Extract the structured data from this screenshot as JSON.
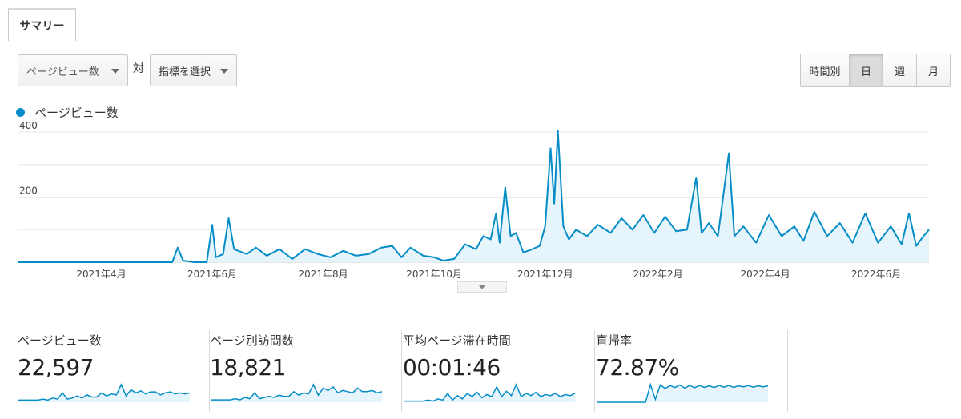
{
  "tabs": [
    {
      "label": "サマリー"
    }
  ],
  "controls": {
    "metric_select": "ページビュー数",
    "vs_label": "対",
    "compare_select": "指標を選択",
    "granularity": [
      {
        "label": "時間別",
        "active": false
      },
      {
        "label": "日",
        "active": true
      },
      {
        "label": "週",
        "active": false
      },
      {
        "label": "月",
        "active": false
      }
    ]
  },
  "legend": {
    "label": "ページビュー数",
    "color": "#058dc7"
  },
  "chart_data": {
    "type": "area",
    "series_name": "ページビュー数",
    "x_start": "2021-02-14",
    "x_end": "2022-06-30",
    "ylim": [
      0,
      420
    ],
    "y_ticks": [
      {
        "value": 400,
        "label": "400"
      },
      {
        "value": 200,
        "label": "200"
      }
    ],
    "x_ticks": [
      {
        "date": "2021-04-01",
        "label": "2021年4月"
      },
      {
        "date": "2021-06-01",
        "label": "2021年6月"
      },
      {
        "date": "2021-08-01",
        "label": "2021年8月"
      },
      {
        "date": "2021-10-01",
        "label": "2021年10月"
      },
      {
        "date": "2021-12-01",
        "label": "2021年12月"
      },
      {
        "date": "2022-02-01",
        "label": "2022年2月"
      },
      {
        "date": "2022-04-01",
        "label": "2022年4月"
      },
      {
        "date": "2022-06-01",
        "label": "2022年6月"
      }
    ],
    "grid": true,
    "color": "#058dc7",
    "fill": "#e6f4fb",
    "points": [
      [
        "2021-02-14",
        0
      ],
      [
        "2021-05-10",
        0
      ],
      [
        "2021-05-13",
        45
      ],
      [
        "2021-05-16",
        5
      ],
      [
        "2021-05-22",
        0
      ],
      [
        "2021-05-29",
        0
      ],
      [
        "2021-06-01",
        115
      ],
      [
        "2021-06-03",
        15
      ],
      [
        "2021-06-07",
        25
      ],
      [
        "2021-06-10",
        135
      ],
      [
        "2021-06-13",
        40
      ],
      [
        "2021-06-20",
        25
      ],
      [
        "2021-06-25",
        45
      ],
      [
        "2021-07-01",
        20
      ],
      [
        "2021-07-08",
        40
      ],
      [
        "2021-07-15",
        10
      ],
      [
        "2021-07-22",
        40
      ],
      [
        "2021-07-29",
        25
      ],
      [
        "2021-08-05",
        15
      ],
      [
        "2021-08-12",
        35
      ],
      [
        "2021-08-19",
        20
      ],
      [
        "2021-08-26",
        25
      ],
      [
        "2021-09-02",
        45
      ],
      [
        "2021-09-08",
        50
      ],
      [
        "2021-09-13",
        15
      ],
      [
        "2021-09-18",
        45
      ],
      [
        "2021-09-25",
        20
      ],
      [
        "2021-10-01",
        15
      ],
      [
        "2021-10-06",
        5
      ],
      [
        "2021-10-12",
        10
      ],
      [
        "2021-10-18",
        55
      ],
      [
        "2021-10-24",
        40
      ],
      [
        "2021-10-28",
        80
      ],
      [
        "2021-11-01",
        70
      ],
      [
        "2021-11-04",
        150
      ],
      [
        "2021-11-06",
        60
      ],
      [
        "2021-11-09",
        230
      ],
      [
        "2021-11-12",
        80
      ],
      [
        "2021-11-15",
        90
      ],
      [
        "2021-11-19",
        30
      ],
      [
        "2021-11-24",
        40
      ],
      [
        "2021-11-28",
        50
      ],
      [
        "2021-12-01",
        110
      ],
      [
        "2021-12-04",
        350
      ],
      [
        "2021-12-06",
        180
      ],
      [
        "2021-12-08",
        405
      ],
      [
        "2021-12-11",
        110
      ],
      [
        "2021-12-14",
        70
      ],
      [
        "2021-12-18",
        100
      ],
      [
        "2021-12-24",
        80
      ],
      [
        "2021-12-30",
        115
      ],
      [
        "2022-01-06",
        90
      ],
      [
        "2022-01-12",
        135
      ],
      [
        "2022-01-18",
        100
      ],
      [
        "2022-01-24",
        145
      ],
      [
        "2022-01-30",
        90
      ],
      [
        "2022-02-05",
        140
      ],
      [
        "2022-02-11",
        95
      ],
      [
        "2022-02-17",
        100
      ],
      [
        "2022-02-22",
        260
      ],
      [
        "2022-02-25",
        90
      ],
      [
        "2022-03-01",
        120
      ],
      [
        "2022-03-06",
        80
      ],
      [
        "2022-03-12",
        335
      ],
      [
        "2022-03-15",
        80
      ],
      [
        "2022-03-20",
        110
      ],
      [
        "2022-03-27",
        60
      ],
      [
        "2022-04-03",
        145
      ],
      [
        "2022-04-10",
        80
      ],
      [
        "2022-04-17",
        110
      ],
      [
        "2022-04-22",
        65
      ],
      [
        "2022-04-28",
        155
      ],
      [
        "2022-05-05",
        80
      ],
      [
        "2022-05-12",
        120
      ],
      [
        "2022-05-19",
        60
      ],
      [
        "2022-05-26",
        150
      ],
      [
        "2022-06-02",
        60
      ],
      [
        "2022-06-09",
        110
      ],
      [
        "2022-06-15",
        55
      ],
      [
        "2022-06-19",
        150
      ],
      [
        "2022-06-23",
        50
      ],
      [
        "2022-06-27",
        80
      ],
      [
        "2022-06-30",
        100
      ]
    ]
  },
  "metrics": [
    {
      "label": "ページビュー数",
      "value": "22,597",
      "spark": [
        2,
        2,
        2,
        2,
        2,
        3,
        2,
        4,
        3,
        9,
        3,
        4,
        6,
        4,
        7,
        5,
        5,
        9,
        6,
        8,
        7,
        17,
        6,
        12,
        9,
        11,
        8,
        10,
        10,
        7,
        9,
        10,
        8,
        9,
        8,
        9
      ]
    },
    {
      "label": "ページ別訪問数",
      "value": "18,821",
      "spark": [
        2,
        2,
        2,
        2,
        2,
        3,
        2,
        4,
        3,
        8,
        3,
        4,
        5,
        4,
        6,
        5,
        5,
        9,
        6,
        8,
        7,
        15,
        6,
        12,
        10,
        13,
        8,
        10,
        9,
        8,
        12,
        9,
        9,
        10,
        8,
        9
      ]
    },
    {
      "label": "平均ページ滞在時間",
      "value": "00:01:46",
      "spark": [
        1,
        1,
        1,
        1,
        1,
        2,
        1,
        3,
        2,
        8,
        2,
        6,
        3,
        8,
        5,
        9,
        4,
        7,
        5,
        14,
        5,
        10,
        6,
        16,
        5,
        8,
        6,
        9,
        5,
        7,
        6,
        8,
        5,
        7,
        6,
        8
      ]
    },
    {
      "label": "直帰率",
      "value": "72.87%",
      "spark": [
        0,
        0,
        0,
        0,
        0,
        0,
        0,
        0,
        0,
        0,
        0,
        90,
        15,
        88,
        70,
        85,
        75,
        88,
        72,
        86,
        74,
        85,
        76,
        84,
        75,
        86,
        77,
        85,
        76,
        84,
        78,
        85,
        77,
        84,
        78,
        84
      ]
    }
  ]
}
